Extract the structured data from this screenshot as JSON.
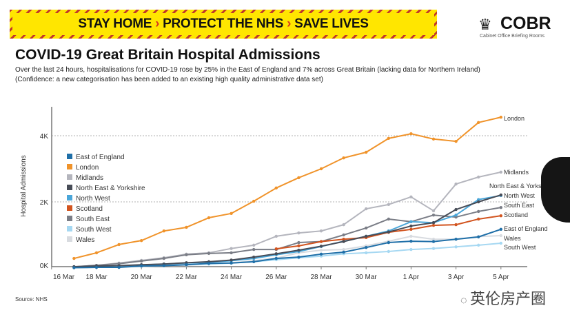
{
  "banner": {
    "part1": "STAY HOME",
    "part2": "PROTECT THE NHS",
    "part3": "SAVE LIVES",
    "separator": "›"
  },
  "logo": {
    "name": "COBR",
    "subtitle": "Cabinet Office Briefing Rooms"
  },
  "watermark": "英伦房产圈",
  "source": "Source: NHS",
  "chart_data": {
    "type": "line",
    "title": "COVID-19 Great Britain Hospital Admissions",
    "subtitle": "Over the last 24 hours, hospitalisations for COVID-19 rose by 25% in the East of England and 7% across Great Britain (lacking data for Northern Ireland)",
    "subtitle2": "(Confidence: a new categorisation has been added to an existing high quality administrative data set)",
    "xlabel": "",
    "ylabel": "Hospital Admissions",
    "ylim": [
      0,
      4900
    ],
    "yticks": [
      0,
      2000,
      4000
    ],
    "ytick_labels": [
      "0K",
      "2K",
      "4K"
    ],
    "grid": "horizontal dotted at 2K and 4K",
    "legend_placement": "left",
    "x": [
      "16 Mar",
      "17 Mar",
      "18 Mar",
      "19 Mar",
      "20 Mar",
      "21 Mar",
      "22 Mar",
      "23 Mar",
      "24 Mar",
      "25 Mar",
      "26 Mar",
      "27 Mar",
      "28 Mar",
      "29 Mar",
      "30 Mar",
      "31 Mar",
      "1 Apr",
      "2 Apr",
      "3 Apr",
      "4 Apr",
      "5 Apr"
    ],
    "xtick_labels": [
      "16 Mar",
      "18 Mar",
      "20 Mar",
      "22 Mar",
      "24 Mar",
      "26 Mar",
      "28 Mar",
      "30 Mar",
      "1 Apr",
      "3 Apr",
      "5 Apr"
    ],
    "series": [
      {
        "name": "East of England",
        "color": "#1f6fa8",
        "values": [
          null,
          10,
          20,
          20,
          60,
          70,
          100,
          140,
          150,
          190,
          290,
          330,
          420,
          480,
          620,
          770,
          810,
          800,
          870,
          940,
          1170
        ]
      },
      {
        "name": "London",
        "color": "#f0932a",
        "values": [
          null,
          290,
          460,
          710,
          830,
          1120,
          1230,
          1520,
          1650,
          2020,
          2420,
          2730,
          3000,
          3330,
          3500,
          3920,
          4060,
          3900,
          3830,
          4400,
          4560
        ]
      },
      {
        "name": "Midlands",
        "color": "#b4b5bd",
        "values": [
          null,
          40,
          80,
          150,
          230,
          310,
          420,
          460,
          590,
          690,
          960,
          1060,
          1120,
          1310,
          1790,
          1920,
          2150,
          1730,
          2540,
          2750,
          2900
        ]
      },
      {
        "name": "North East & Yorkshire",
        "color": "#474c57",
        "values": [
          null,
          40,
          60,
          70,
          100,
          120,
          160,
          190,
          240,
          330,
          430,
          540,
          660,
          800,
          960,
          1090,
          1270,
          1370,
          1770,
          2000,
          2210
        ]
      },
      {
        "name": "North West",
        "color": "#4aa6d9",
        "values": [
          null,
          30,
          50,
          70,
          90,
          120,
          150,
          180,
          220,
          290,
          400,
          500,
          650,
          810,
          960,
          1120,
          1400,
          1370,
          1600,
          2070,
          2190
        ]
      },
      {
        "name": "Scotland",
        "color": "#d2541f",
        "values": [
          null,
          null,
          null,
          null,
          null,
          null,
          null,
          null,
          null,
          null,
          580,
          670,
          800,
          870,
          920,
          1080,
          1170,
          1290,
          1310,
          1480,
          1580
        ]
      },
      {
        "name": "South East",
        "color": "#7a7d86",
        "values": [
          null,
          40,
          80,
          130,
          210,
          290,
          400,
          440,
          460,
          560,
          560,
          770,
          800,
          1000,
          1210,
          1480,
          1400,
          1600,
          1540,
          1710,
          1830
        ]
      },
      {
        "name": "South West",
        "color": "#a6d8f2",
        "values": [
          null,
          20,
          30,
          40,
          60,
          80,
          100,
          120,
          150,
          190,
          250,
          310,
          360,
          430,
          460,
          500,
          560,
          590,
          640,
          690,
          750
        ]
      },
      {
        "name": "Wales",
        "color": "#d8dbe0",
        "values": [
          null,
          10,
          20,
          30,
          50,
          70,
          90,
          120,
          160,
          220,
          300,
          460,
          540,
          560,
          670,
          810,
          960,
          870,
          870,
          950,
          980
        ]
      }
    ]
  }
}
